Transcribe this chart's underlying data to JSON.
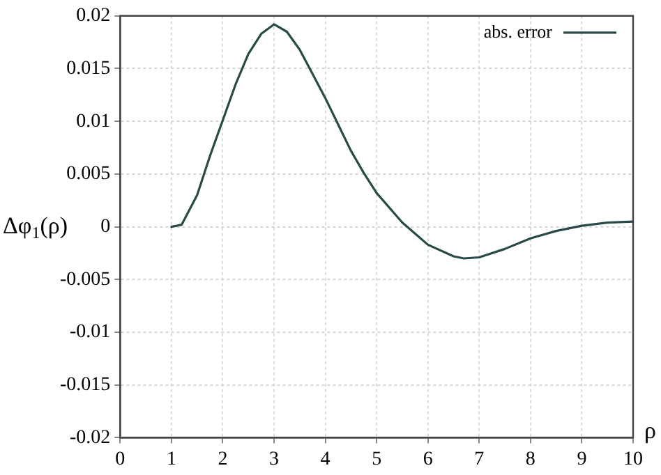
{
  "chart_data": {
    "type": "line",
    "xlabel": "ρ",
    "ylabel": "Δφ$_{1}$(ρ)",
    "x": [
      1,
      1.2,
      1.5,
      1.75,
      2,
      2.25,
      2.5,
      2.75,
      3,
      3.25,
      3.5,
      3.75,
      4,
      4.25,
      4.5,
      4.75,
      5,
      5.5,
      6,
      6.5,
      6.7,
      7,
      7.5,
      8,
      8.5,
      9,
      9.5,
      10
    ],
    "series": [
      {
        "name": "abs. error",
        "color": "#2a4a48",
        "values": [
          0,
          0.0002,
          0.003,
          0.0067,
          0.0101,
          0.0135,
          0.0164,
          0.0183,
          0.0192,
          0.0185,
          0.0168,
          0.0145,
          0.0122,
          0.0097,
          0.0072,
          0.0051,
          0.0032,
          0.0004,
          -0.0017,
          -0.0028,
          -0.003,
          -0.0029,
          -0.0021,
          -0.0011,
          -0.0004,
          0.0001,
          0.0004,
          0.0005
        ]
      }
    ],
    "xlim": [
      0,
      10
    ],
    "xticks": [
      0,
      1,
      2,
      3,
      4,
      5,
      6,
      7,
      8,
      9,
      10
    ],
    "ylim": [
      -0.02,
      0.02
    ],
    "yticks": [
      -0.02,
      -0.015,
      -0.01,
      -0.005,
      0,
      0.005,
      0.01,
      0.015,
      0.02
    ],
    "grid": true,
    "legend": "top right",
    "marker": "none",
    "line_style": "solid"
  }
}
